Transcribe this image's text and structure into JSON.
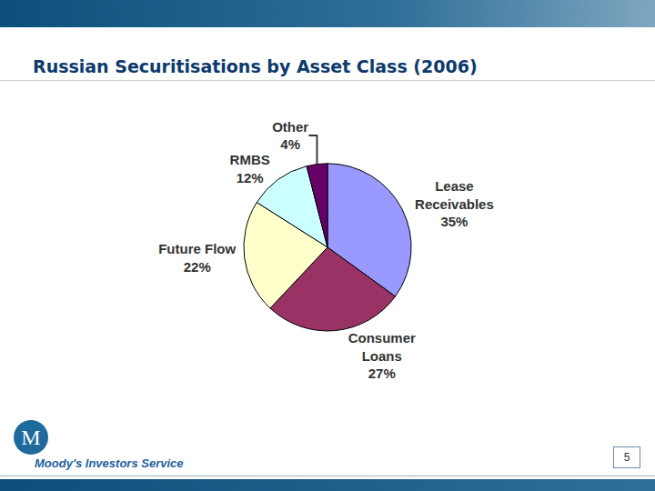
{
  "chart_data": {
    "type": "pie",
    "title": "Russian Securitisations by Asset Class (2006)",
    "categories": [
      "Lease Receivables",
      "Consumer Loans",
      "Future Flow",
      "RMBS",
      "Other"
    ],
    "values": [
      35,
      27,
      22,
      12,
      4
    ],
    "value_labels": [
      "35%",
      "27%",
      "22%",
      "12%",
      "4%"
    ],
    "colors": [
      "#9999ff",
      "#993366",
      "#ffffcc",
      "#ccffff",
      "#660066"
    ],
    "data_labels": true
  },
  "slide": {
    "footer": "Moody's Investors Service",
    "page": 5
  }
}
